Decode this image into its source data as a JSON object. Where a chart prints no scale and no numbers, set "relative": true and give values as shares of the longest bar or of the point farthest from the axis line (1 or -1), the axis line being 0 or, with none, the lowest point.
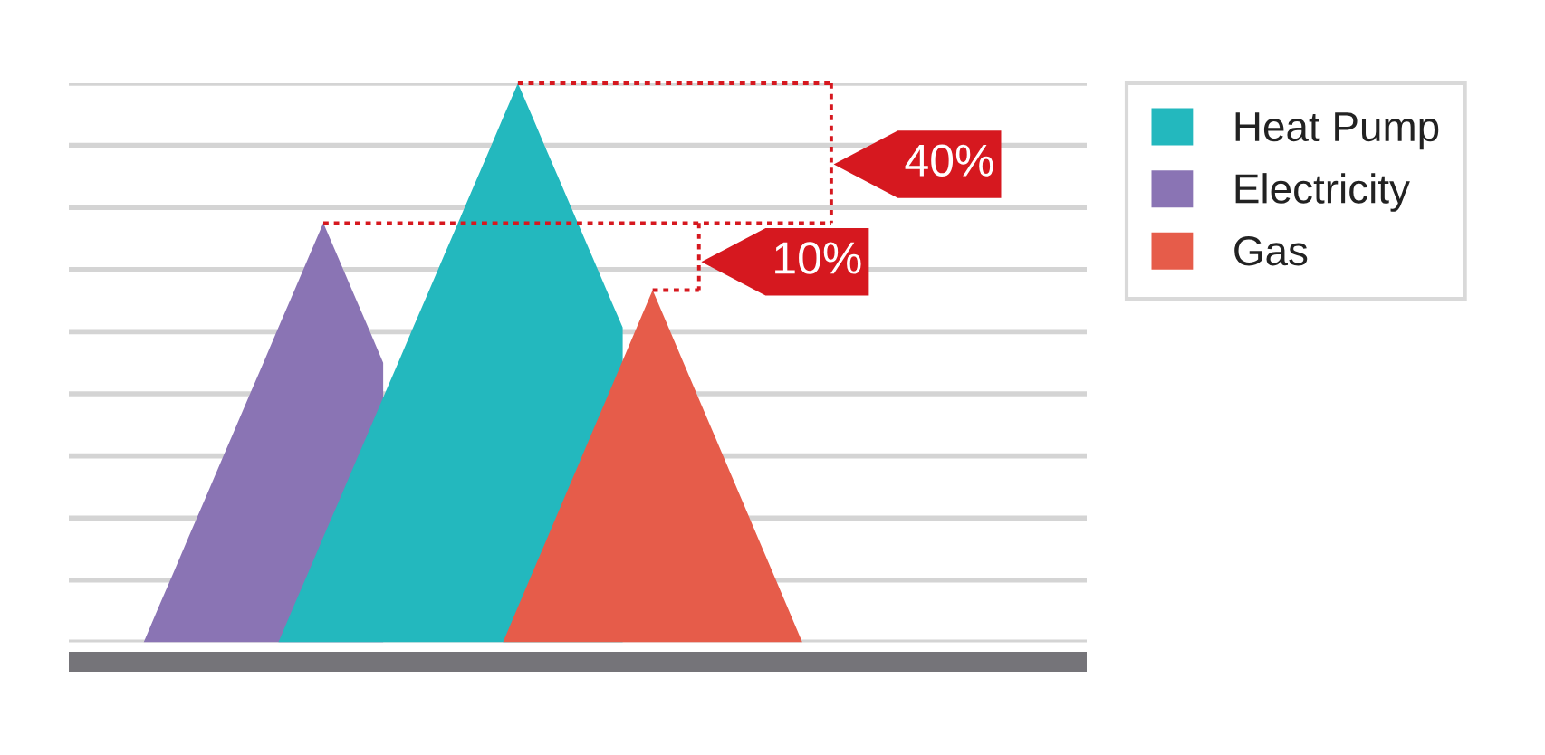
{
  "chart_data": {
    "type": "area",
    "relative": true,
    "grid": "y",
    "legend": "top right",
    "categories": [
      null,
      null,
      null,
      null,
      null,
      null,
      null,
      null,
      null,
      null,
      null,
      null,
      null,
      null,
      null,
      null,
      null,
      null,
      null,
      null,
      null,
      null,
      null,
      null,
      null,
      null,
      null,
      null,
      null,
      null,
      null,
      null,
      null,
      null,
      null,
      null,
      null,
      null,
      null,
      null,
      null,
      null,
      null,
      null,
      null,
      null,
      null,
      null,
      null,
      null,
      null,
      null,
      null,
      null,
      null,
      null,
      null,
      null,
      null,
      null,
      null,
      null,
      null,
      null,
      null,
      null,
      null,
      null,
      null
    ],
    "series": [
      {
        "name": "Heat Pump",
        "color": "#23b8be",
        "values": [
          null,
          null,
          null,
          null,
          null,
          null,
          null,
          null,
          null,
          null,
          null,
          null,
          null,
          null,
          0,
          0.063,
          0.125,
          0.188,
          0.25,
          0.313,
          0.375,
          0.438,
          0.5,
          0.563,
          0.625,
          0.688,
          0.75,
          0.813,
          0.875,
          0.938,
          1,
          0.938,
          0.875,
          0.813,
          0.75,
          0.688,
          0.625,
          0.563,
          null,
          null,
          null,
          null,
          null,
          null,
          null,
          null,
          null,
          null,
          null,
          null,
          null,
          null,
          null,
          null,
          null,
          null,
          null,
          null,
          null,
          null,
          null,
          null,
          null,
          null,
          null,
          null,
          null,
          null,
          null
        ]
      },
      {
        "name": "Electricity",
        "color": "#8a74b4",
        "values": [
          null,
          null,
          null,
          null,
          null,
          0,
          0.063,
          0.125,
          0.188,
          0.25,
          0.313,
          0.375,
          0.438,
          0.5,
          0.563,
          0.625,
          0.688,
          0.75,
          0.688,
          0.625,
          0.563,
          0.5,
          null,
          null,
          null,
          null,
          null,
          null,
          null,
          null,
          null,
          null,
          null,
          null,
          null,
          null,
          null,
          null,
          null,
          null,
          null,
          null,
          null,
          null,
          null,
          null,
          null,
          null,
          null,
          null,
          null,
          null,
          null,
          null,
          null,
          null,
          null,
          null,
          null,
          null,
          null,
          null,
          null,
          null,
          null,
          null,
          null,
          null,
          null
        ]
      },
      {
        "name": "Gas",
        "color": "#e65c4a",
        "values": [
          null,
          null,
          null,
          null,
          null,
          null,
          null,
          null,
          null,
          null,
          null,
          null,
          null,
          null,
          null,
          null,
          null,
          null,
          null,
          null,
          null,
          null,
          null,
          null,
          null,
          null,
          null,
          null,
          null,
          0,
          0.063,
          0.126,
          0.189,
          0.252,
          0.315,
          0.378,
          0.441,
          0.504,
          0.567,
          0.63,
          0.567,
          0.504,
          0.441,
          0.378,
          0.315,
          0.252,
          0.189,
          0.126,
          0.063,
          0,
          null,
          null,
          null,
          null,
          null,
          null,
          null,
          null,
          null,
          null,
          null,
          null,
          null,
          null,
          null,
          null,
          null,
          null,
          null
        ]
      }
    ],
    "annotations": [
      "40%",
      "10%"
    ]
  }
}
